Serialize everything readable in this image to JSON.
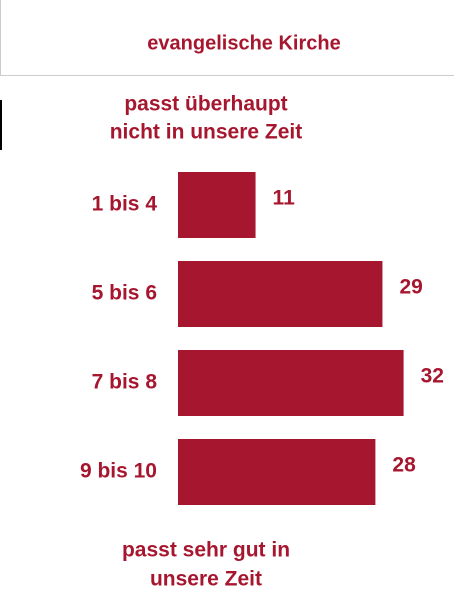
{
  "chart_data": {
    "type": "bar",
    "orientation": "horizontal",
    "title": "evangelische Kirche",
    "annotations": {
      "top": [
        "passt überhaupt",
        "nicht in unsere Zeit"
      ],
      "bottom": [
        "passt sehr gut in",
        "unsere Zeit"
      ]
    },
    "categories": [
      "1 bis 4",
      "5 bis 6",
      "7 bis 8",
      "9 bis 10"
    ],
    "values": [
      11,
      29,
      32,
      28
    ],
    "color": "#a6172f"
  }
}
